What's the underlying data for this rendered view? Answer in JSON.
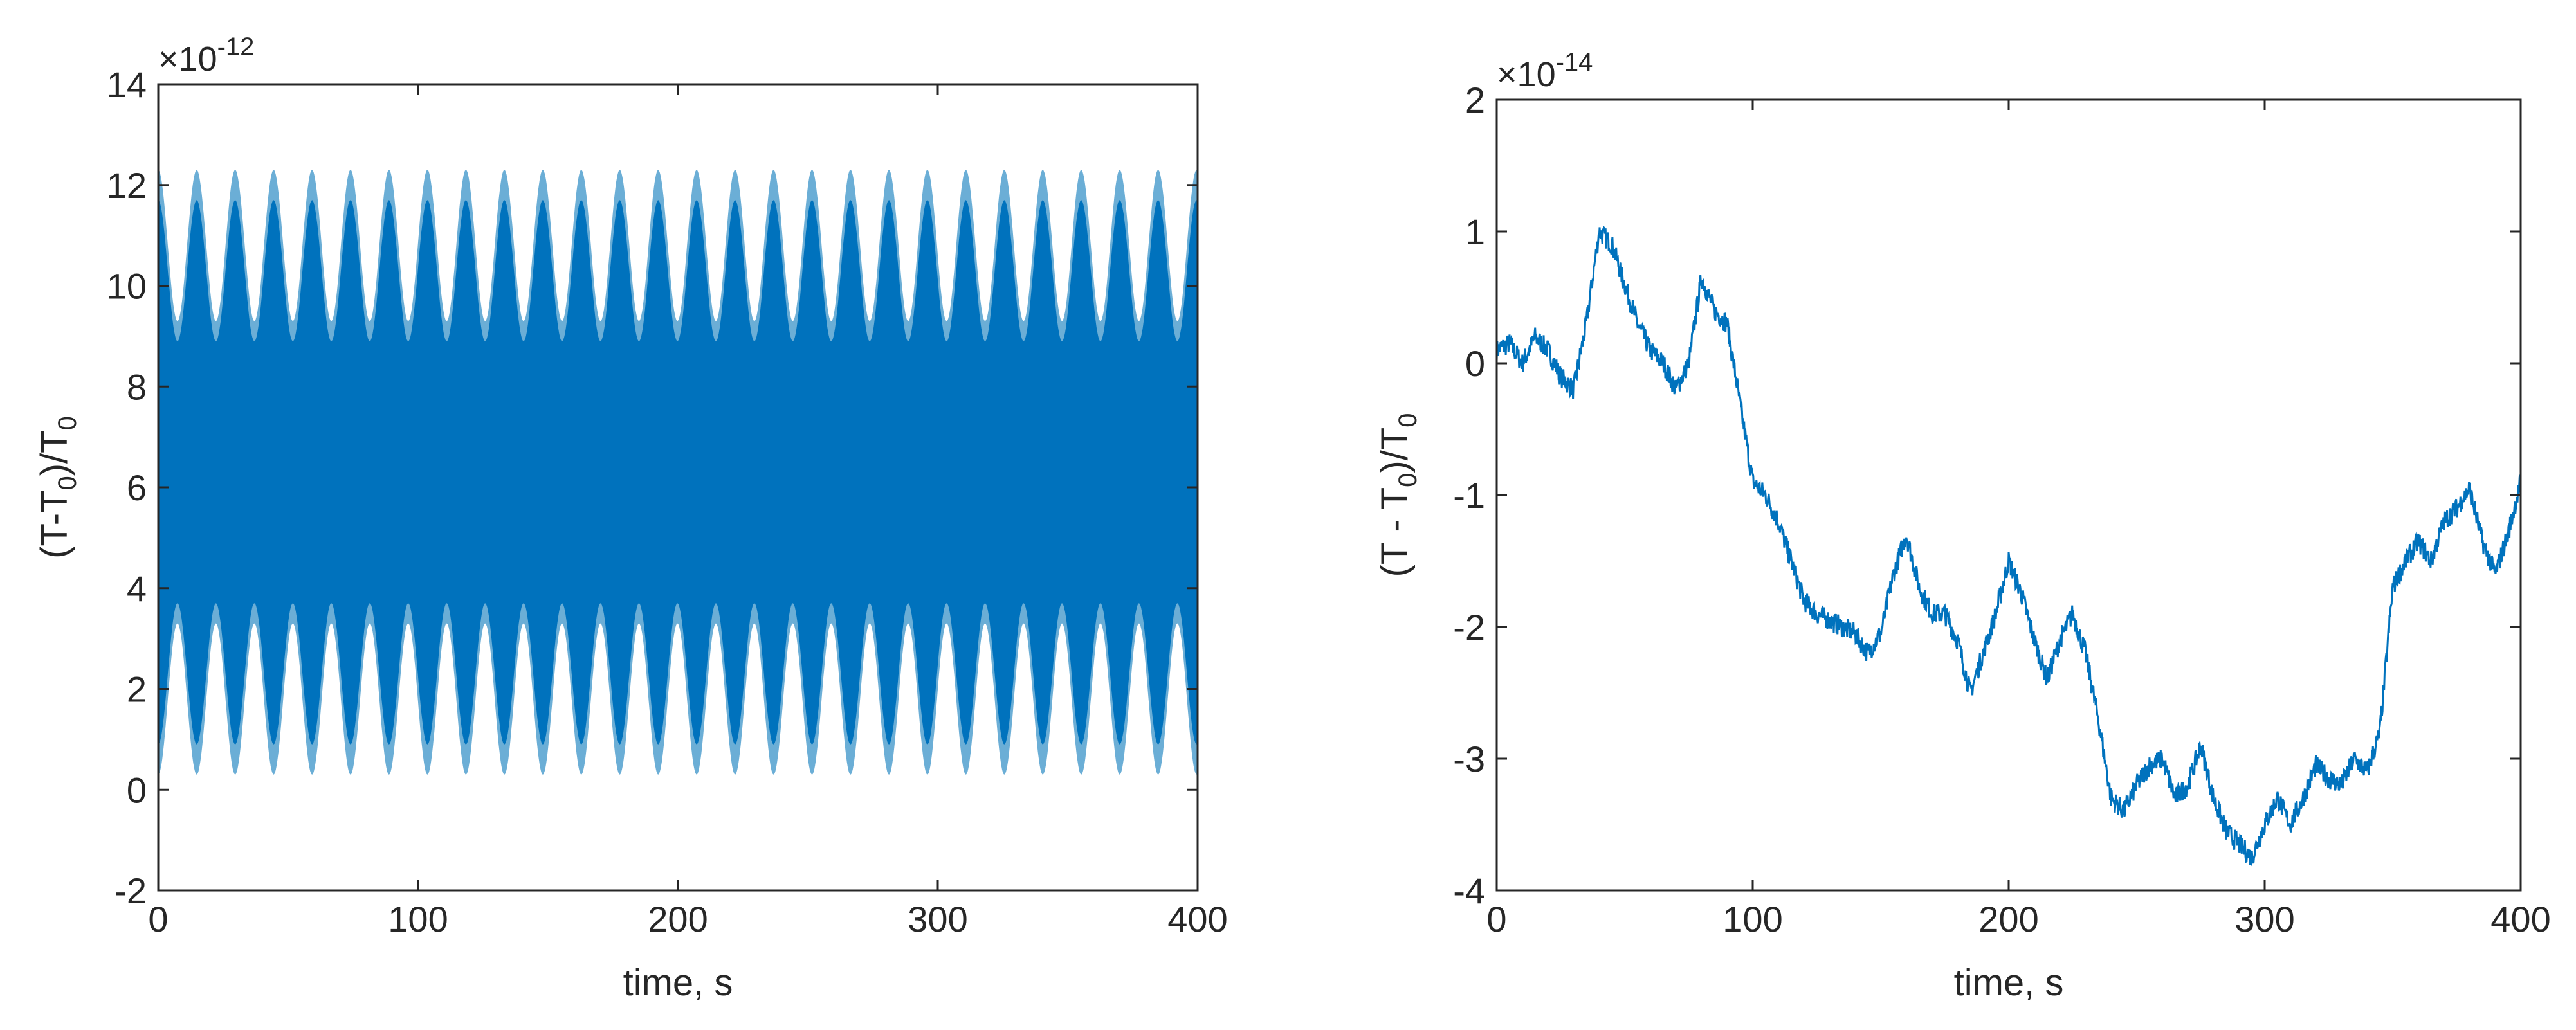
{
  "chart_data": [
    {
      "type": "area",
      "xlabel": "time, s",
      "ylabel": "(T-T0)/T0",
      "ylabel_parts": {
        "main": "(T-T",
        "sub": "0",
        "after": ")/T",
        "sub2": "0"
      },
      "exponent_label": {
        "prefix": "×10",
        "power": "-12"
      },
      "xlim": [
        0,
        400
      ],
      "ylim": [
        -2,
        14
      ],
      "x_ticks": [
        0,
        100,
        200,
        300,
        400
      ],
      "y_ticks": [
        -2,
        0,
        2,
        4,
        6,
        8,
        10,
        12,
        14
      ],
      "x_tick_labels": [
        "0",
        "100",
        "200",
        "300",
        "400"
      ],
      "y_tick_labels": [
        "-2",
        "0",
        "2",
        "4",
        "6",
        "8",
        "10",
        "12",
        "14"
      ],
      "grid": false,
      "series": [
        {
          "color": "#6BAED6",
          "envelope": {
            "center": 6.3,
            "min_half_width": 3.0,
            "max_half_width": 6.0,
            "beat_period_s": 14.8,
            "x_range": [
              0,
              400
            ]
          }
        },
        {
          "color": "#0072BD",
          "envelope": {
            "center": 6.3,
            "min_half_width": 2.6,
            "max_half_width": 5.4,
            "beat_period_s": 14.8,
            "x_range": [
              0,
              400
            ]
          }
        }
      ]
    },
    {
      "type": "line",
      "xlabel": "time, s",
      "ylabel": "(T - T0)/T0",
      "ylabel_parts": {
        "main": "(T - T",
        "sub": "0",
        "after": ")/T",
        "sub2": "0"
      },
      "exponent_label": {
        "prefix": "×10",
        "power": "-14"
      },
      "xlim": [
        0,
        400
      ],
      "ylim": [
        -4,
        2
      ],
      "x_ticks": [
        0,
        100,
        200,
        300,
        400
      ],
      "y_ticks": [
        -4,
        -3,
        -2,
        -1,
        0,
        1,
        2
      ],
      "x_tick_labels": [
        "0",
        "100",
        "200",
        "300",
        "400"
      ],
      "y_tick_labels": [
        "-4",
        "-3",
        "-2",
        "-1",
        "0",
        "1",
        "2"
      ],
      "grid": false,
      "series": [
        {
          "color": "#0072BD",
          "x": [
            0,
            5,
            10,
            15,
            20,
            25,
            30,
            35,
            40,
            45,
            50,
            55,
            60,
            65,
            70,
            75,
            80,
            85,
            90,
            95,
            100,
            105,
            110,
            115,
            120,
            125,
            130,
            135,
            140,
            145,
            150,
            155,
            160,
            165,
            170,
            175,
            180,
            185,
            190,
            195,
            200,
            205,
            210,
            215,
            220,
            225,
            230,
            235,
            240,
            245,
            250,
            255,
            260,
            265,
            270,
            275,
            280,
            285,
            290,
            295,
            300,
            305,
            310,
            315,
            320,
            325,
            330,
            335,
            340,
            345,
            350,
            355,
            360,
            365,
            370,
            375,
            380,
            385,
            390,
            395,
            400
          ],
          "y": [
            0.1,
            0.15,
            0.0,
            0.2,
            0.1,
            -0.1,
            -0.2,
            0.3,
            1.0,
            0.9,
            0.6,
            0.3,
            0.1,
            0.0,
            -0.2,
            0.0,
            0.65,
            0.4,
            0.3,
            -0.3,
            -0.9,
            -1.0,
            -1.2,
            -1.5,
            -1.8,
            -1.9,
            -1.95,
            -2.0,
            -2.05,
            -2.2,
            -2.05,
            -1.6,
            -1.3,
            -1.7,
            -1.9,
            -1.9,
            -2.1,
            -2.5,
            -2.2,
            -1.9,
            -1.5,
            -1.75,
            -2.1,
            -2.4,
            -2.1,
            -1.9,
            -2.2,
            -2.7,
            -3.3,
            -3.4,
            -3.2,
            -3.05,
            -3.0,
            -3.3,
            -3.2,
            -2.9,
            -3.3,
            -3.55,
            -3.65,
            -3.75,
            -3.5,
            -3.3,
            -3.5,
            -3.3,
            -3.05,
            -3.15,
            -3.2,
            -3.0,
            -3.1,
            -2.8,
            -1.7,
            -1.5,
            -1.35,
            -1.5,
            -1.2,
            -1.1,
            -0.95,
            -1.35,
            -1.6,
            -1.3,
            -0.9
          ]
        }
      ]
    }
  ]
}
